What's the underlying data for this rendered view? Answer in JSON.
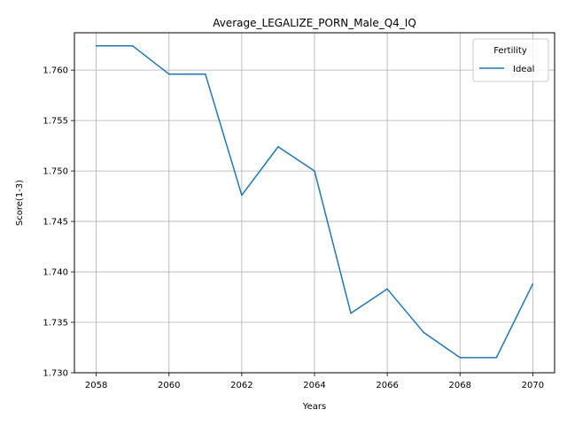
{
  "chart_data": {
    "type": "line",
    "title": "Average_LEGALIZE_PORN_Male_Q4_IQ",
    "xlabel": "Years",
    "ylabel": "Score(1-3)",
    "xlim": [
      2057.4,
      2070.6
    ],
    "ylim": [
      1.73,
      1.7637
    ],
    "xticks": [
      2058,
      2060,
      2062,
      2064,
      2066,
      2068,
      2070
    ],
    "yticks": [
      1.73,
      1.735,
      1.74,
      1.745,
      1.75,
      1.755,
      1.76
    ],
    "grid": true,
    "legend": {
      "title": "Fertility",
      "placement": "top-right"
    },
    "x": [
      2058,
      2059,
      2060,
      2061,
      2062,
      2063,
      2064,
      2065,
      2066,
      2067,
      2068,
      2069,
      2070
    ],
    "series": [
      {
        "name": "Ideal",
        "color": "#1f77b4",
        "values": [
          1.7624,
          1.7624,
          1.7596,
          1.7596,
          1.7476,
          1.7524,
          1.75,
          1.7359,
          1.7383,
          1.734,
          1.7315,
          1.7315,
          1.7388
        ]
      }
    ]
  }
}
